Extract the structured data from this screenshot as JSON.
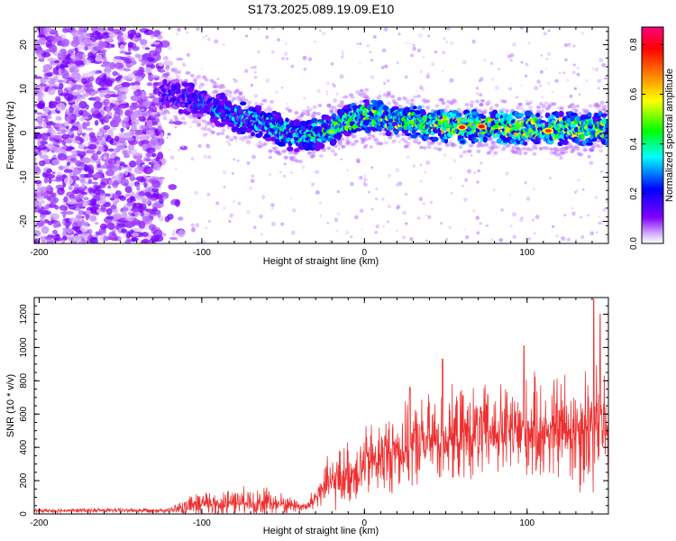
{
  "title": "S173.2025.089.19.09.E10",
  "chart_data": [
    {
      "type": "heatmap",
      "xlabel": "Height of straight line (km)",
      "ylabel": "Frequency (Hz)",
      "xlim": [
        -203,
        150
      ],
      "ylim": [
        -25,
        24
      ],
      "xticks": [
        -200,
        -100,
        0,
        100
      ],
      "yticks": [
        -20,
        -10,
        0,
        10,
        20
      ],
      "colorbar": {
        "label": "Normalized spectral amplitude",
        "range": [
          0,
          0.87
        ],
        "ticks": [
          "0.0",
          "0.2",
          "0.4",
          "0.6",
          "0.8"
        ],
        "colors": [
          "#ffffff",
          "#8000ff",
          "#0000ff",
          "#00ffff",
          "#00ff00",
          "#ffff00",
          "#ff8000",
          "#ff0000",
          "#ff0080"
        ]
      },
      "ridge": {
        "x": [
          -120,
          -100,
          -80,
          -60,
          -40,
          -20,
          0,
          20,
          40,
          60,
          80,
          100,
          120,
          145
        ],
        "freq": [
          9,
          7,
          4,
          2,
          -1,
          1,
          4,
          3,
          2,
          1.5,
          1.5,
          1,
          1,
          1
        ],
        "amplitude": [
          0.22,
          0.3,
          0.35,
          0.4,
          0.4,
          0.45,
          0.5,
          0.55,
          0.55,
          0.62,
          0.58,
          0.62,
          0.55,
          0.5
        ]
      },
      "peaks": [
        {
          "x": 60,
          "freq": 1.3,
          "amplitude": 0.75
        },
        {
          "x": 72,
          "freq": 1.5,
          "amplitude": 0.78
        },
        {
          "x": 113,
          "freq": 0.5,
          "amplitude": 0.72
        },
        {
          "x": -20,
          "freq": 0.3,
          "amplitude": 0.5
        }
      ],
      "noise_region_x": [
        -203,
        -125
      ]
    },
    {
      "type": "line",
      "xlabel": "Height of straight line (km)",
      "ylabel": "SNR (10 * v/v)",
      "xlim": [
        -203,
        150
      ],
      "ylim": [
        0,
        1300
      ],
      "xticks": [
        -200,
        -100,
        0,
        100
      ],
      "yticks": [
        0,
        200,
        400,
        600,
        800,
        1000,
        1200
      ],
      "color": "#ee3030",
      "envelope": {
        "x": [
          -203,
          -120,
          -110,
          -100,
          -80,
          -60,
          -45,
          -35,
          -25,
          -10,
          0,
          10,
          25,
          40,
          60,
          80,
          100,
          120,
          140,
          150
        ],
        "baseline": [
          20,
          22,
          40,
          60,
          70,
          70,
          55,
          40,
          160,
          240,
          300,
          340,
          400,
          440,
          470,
          490,
          500,
          510,
          530,
          520
        ],
        "spread": [
          15,
          18,
          60,
          90,
          100,
          110,
          60,
          40,
          180,
          230,
          260,
          280,
          300,
          320,
          330,
          340,
          360,
          400,
          500,
          420
        ]
      },
      "spikes": [
        {
          "x": 28,
          "y": 760
        },
        {
          "x": 48,
          "y": 930
        },
        {
          "x": 98,
          "y": 1010
        },
        {
          "x": 141,
          "y": 1290
        },
        {
          "x": 145,
          "y": 1200
        }
      ]
    }
  ]
}
